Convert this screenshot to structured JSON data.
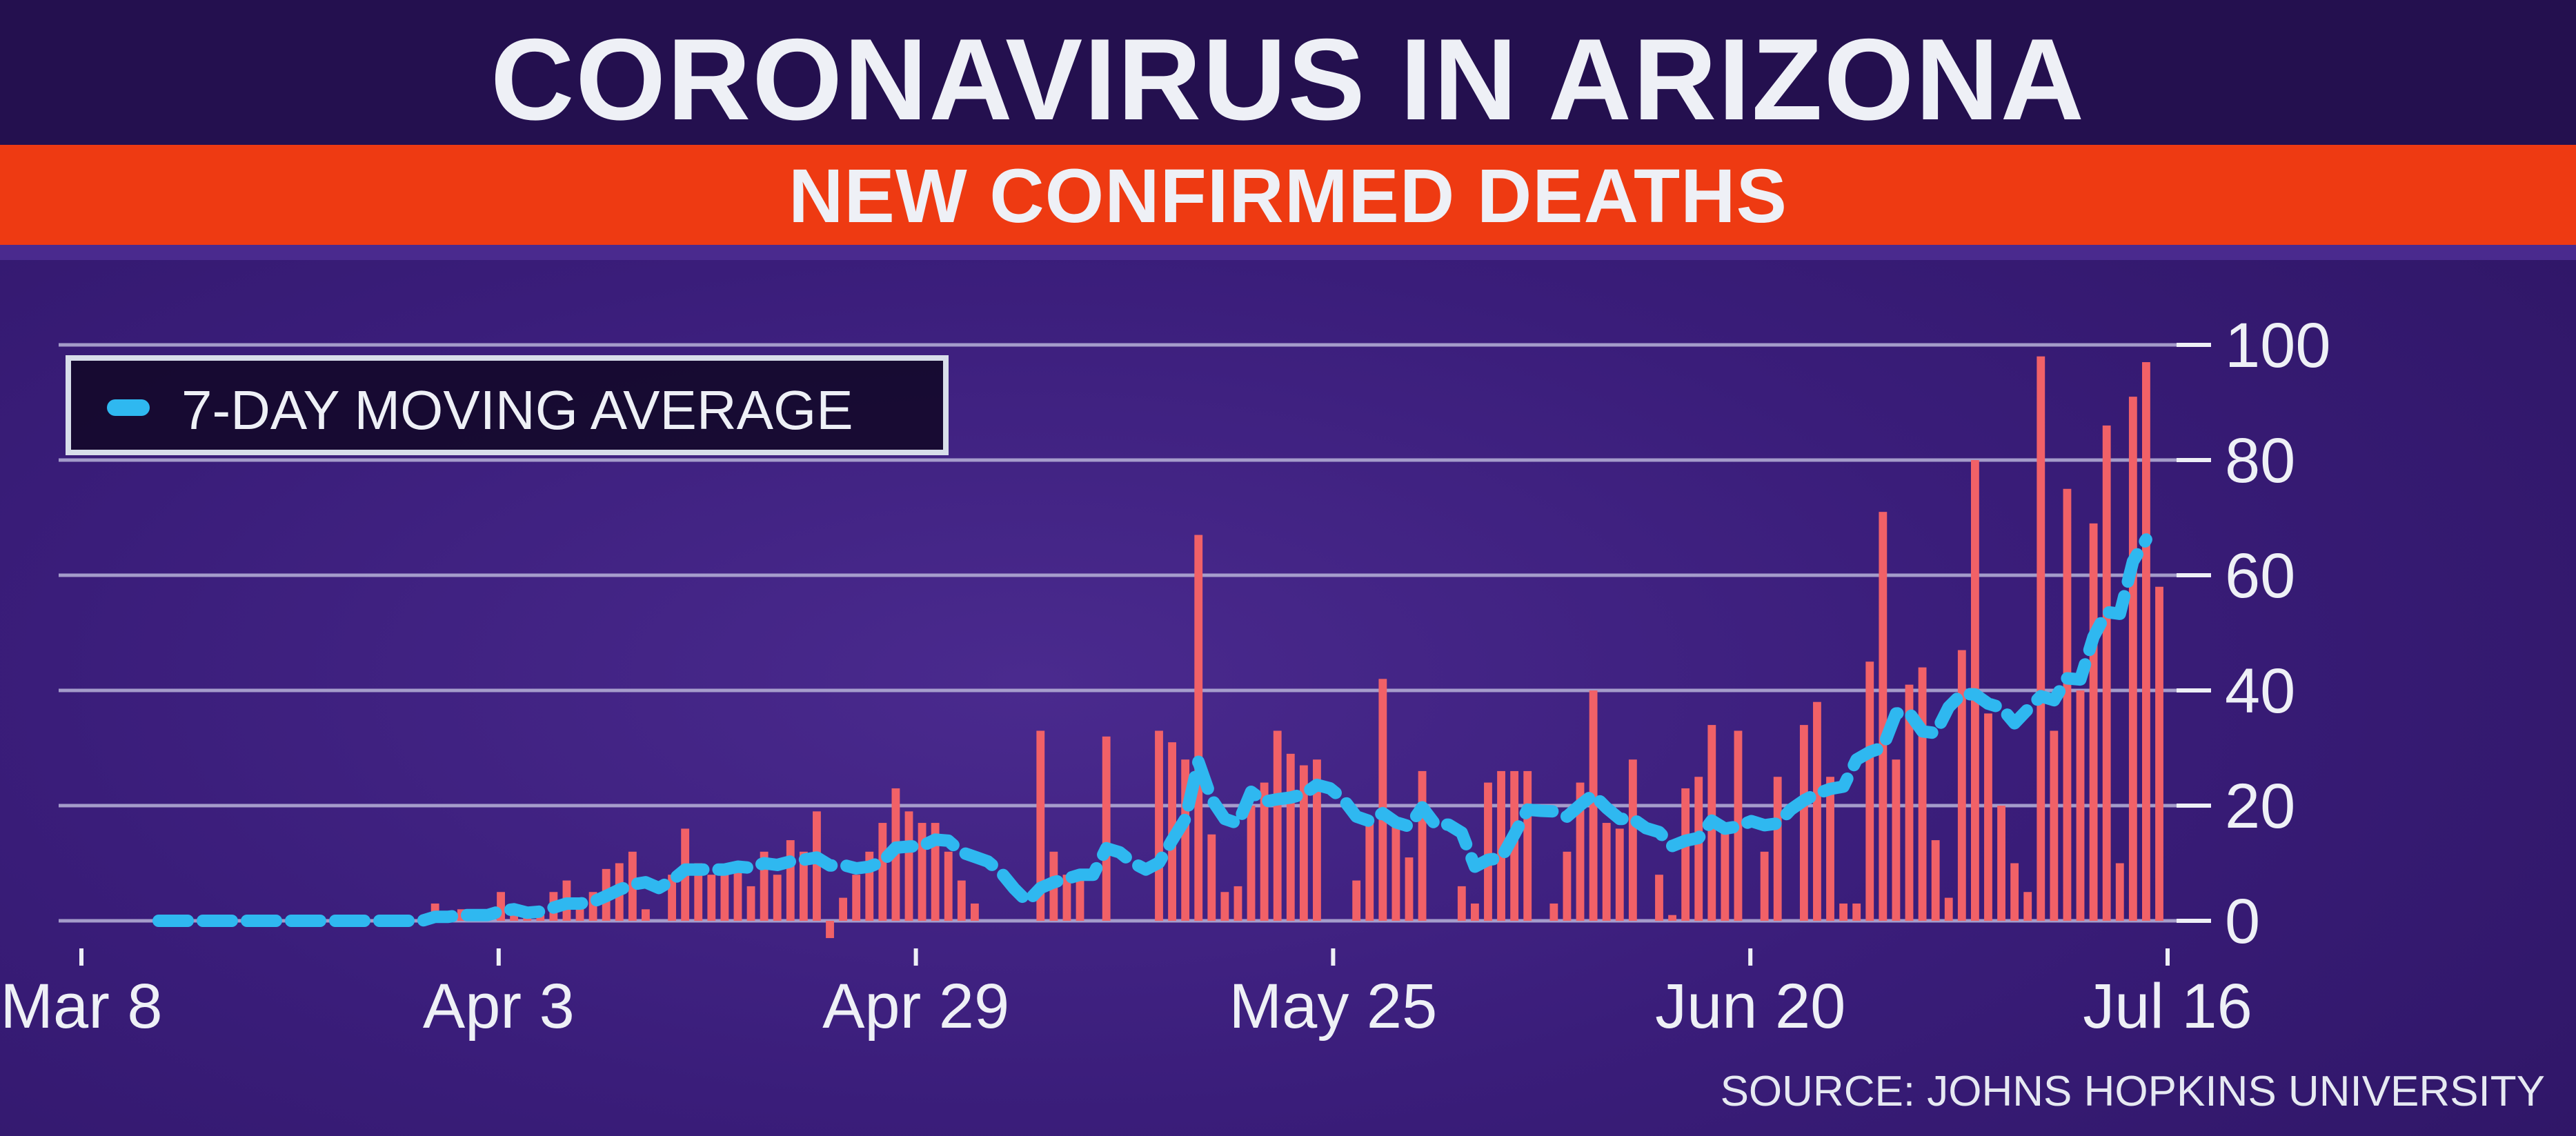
{
  "title": "CORONAVIRUS IN ARIZONA",
  "subtitle": "NEW CONFIRMED DEATHS",
  "legend_label": "7-DAY MOVING AVERAGE",
  "source": "SOURCE: JOHNS HOPKINS UNIVERSITY",
  "colors": {
    "bar": "#f16167",
    "average_line": "#2fb8f0",
    "gridline": "#b7b3d8",
    "title_band": "#24104f",
    "subtitle_band": "#ee3a12"
  },
  "chart_data": {
    "type": "bar",
    "title": "NEW CONFIRMED DEATHS",
    "x_start": "Mar 8",
    "x_end": "Jul 16",
    "xtick_labels": [
      "Mar 8",
      "Apr 3",
      "Apr 29",
      "May 25",
      "Jun 20",
      "Jul 16"
    ],
    "yticks": [
      0,
      20,
      40,
      60,
      80,
      100
    ],
    "ylim": [
      0,
      100
    ],
    "grid": true,
    "legend_position": "top-left",
    "series": [
      {
        "type": "bar",
        "values": [
          0,
          0,
          0,
          0,
          0,
          0,
          0,
          0,
          0,
          0,
          0,
          0,
          0,
          0,
          0,
          0,
          0,
          0,
          0,
          0,
          0,
          3,
          0,
          2,
          0,
          0,
          5,
          2,
          1,
          1,
          5,
          7,
          3,
          5,
          9,
          10,
          12,
          2,
          0,
          8,
          16,
          10,
          8,
          8,
          10,
          6,
          12,
          8,
          14,
          12,
          19,
          -3,
          4,
          8,
          12,
          17,
          23,
          19,
          17,
          17,
          12,
          7,
          3,
          0,
          0,
          0,
          0,
          33,
          12,
          8,
          8,
          0,
          32,
          0,
          0,
          0,
          33,
          31,
          28,
          67,
          15,
          5,
          6,
          20,
          24,
          33,
          29,
          27,
          28,
          0,
          0,
          7,
          18,
          42,
          18,
          11,
          26,
          0,
          0,
          6,
          3,
          24,
          26,
          26,
          26,
          0,
          3,
          12,
          24,
          40,
          17,
          16,
          28,
          0,
          8,
          1,
          23,
          25,
          34,
          17,
          33,
          0,
          12,
          25,
          0,
          34,
          38,
          25,
          3,
          3,
          45,
          71,
          28,
          41,
          44,
          14,
          4,
          47,
          80,
          36,
          20,
          10,
          5,
          98,
          33,
          75,
          40,
          69,
          86,
          10,
          91,
          97,
          58
        ]
      },
      {
        "type": "line",
        "values": [
          0,
          0,
          0,
          0,
          0,
          0,
          0,
          0,
          0,
          0,
          0,
          0,
          0,
          0,
          0,
          0,
          0,
          0,
          0,
          0,
          0,
          0.7,
          0.7,
          1.0,
          1.0,
          1.0,
          1.7,
          2.0,
          1.4,
          1.6,
          2.3,
          3.0,
          3.0,
          3.3,
          4.3,
          5.4,
          6.3,
          6.7,
          5.7,
          7.0,
          8.9,
          8.9,
          8.9,
          8.9,
          9.4,
          9.2,
          10.0,
          9.7,
          10.3,
          10.6,
          11.0,
          9.6,
          9.7,
          9.1,
          9.4,
          10.3,
          12.7,
          12.9,
          13.0,
          14.1,
          13.9,
          11.9,
          11.1,
          10.3,
          8.4,
          5.6,
          3.3,
          5.7,
          6.7,
          7.3,
          8.0,
          8.0,
          12.6,
          11.9,
          10.1,
          8.9,
          10.1,
          14.0,
          17.7,
          27.6,
          21.1,
          17.7,
          16.9,
          22.4,
          20.7,
          21.1,
          21.4,
          22.0,
          23.6,
          23.0,
          21.1,
          18.1,
          17.3,
          18.7,
          17.1,
          16.4,
          19.7,
          16.7,
          16.7,
          15.3,
          9.4,
          10.6,
          10.9,
          15.0,
          19.3,
          19.1,
          19.0,
          18.1,
          20.1,
          21.9,
          19.6,
          17.7,
          17.7,
          16.1,
          15.4,
          13.0,
          13.9,
          14.4,
          17.4,
          16.0,
          16.4,
          17.3,
          16.6,
          16.9,
          19.3,
          20.9,
          22.1,
          22.9,
          23.3,
          28.0,
          29.3,
          30.1,
          36.0,
          36.1,
          32.9,
          32.6,
          37.1,
          39.4,
          39.3,
          37.7,
          37.0,
          34.3,
          36.7,
          39.0,
          38.3,
          42.1,
          41.9,
          49.3,
          53.6,
          53.3,
          62.4,
          66.2
        ]
      }
    ]
  }
}
